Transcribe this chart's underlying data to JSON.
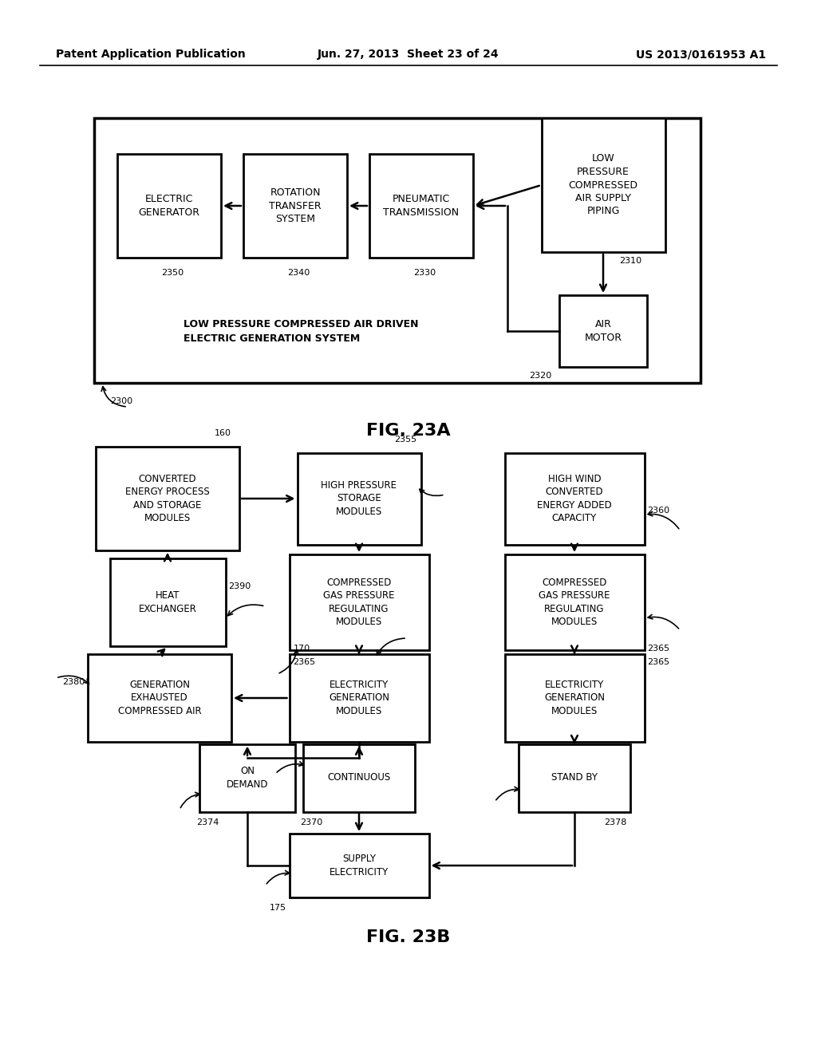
{
  "header_left": "Patent Application Publication",
  "header_mid": "Jun. 27, 2013  Sheet 23 of 24",
  "header_right": "US 2013/0161953 A1",
  "bg_color": "#ffffff"
}
